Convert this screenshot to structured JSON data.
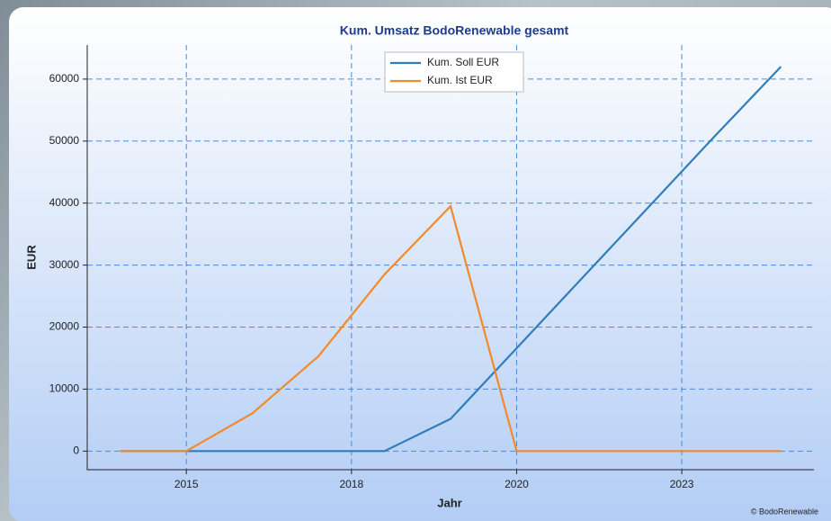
{
  "chart_data": {
    "type": "line",
    "title": "Kum. Umsatz BodoRenewable gesamt",
    "x_label": "Jahr",
    "y_label": "EUR",
    "footer": "© BodoRenewable",
    "x": [
      2014,
      2015,
      2016,
      2017,
      2018,
      2019,
      2020,
      2021,
      2022,
      2023,
      2024
    ],
    "series": [
      {
        "name": "Kum. Soll EUR",
        "color": "#2f7dbb",
        "values": [
          0,
          0,
          0,
          0,
          0,
          5200,
          16600,
          28000,
          39400,
          50800,
          62000
        ]
      },
      {
        "name": "Kum. Ist EUR",
        "color": "#f28a2a",
        "values": [
          0,
          0,
          6100,
          15300,
          28500,
          39500,
          0,
          0,
          0,
          0,
          0
        ]
      }
    ],
    "xlim": [
      2013.5,
      2024.5
    ],
    "xticks": [
      2015,
      {
        "value": 2017.5,
        "label": "2018"
      },
      2020,
      {
        "value": 2022.5,
        "label": "2023"
      }
    ],
    "ylim": [
      -3000,
      65500
    ],
    "yticks": [
      0,
      10000,
      20000,
      30000,
      40000,
      50000,
      60000
    ],
    "grid": true,
    "legend": "top"
  }
}
